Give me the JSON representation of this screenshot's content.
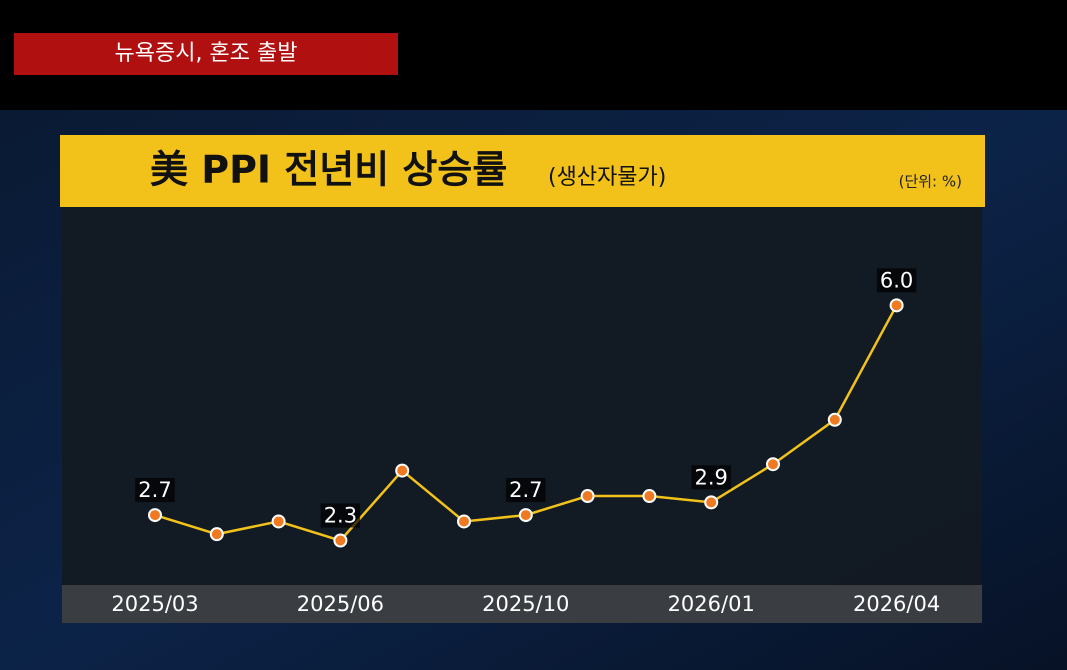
{
  "banner": "뉴욕증시, 혼조 출발",
  "chart_data": {
    "type": "line",
    "title": "美 PPI 전년비 상승률",
    "subtitle": "(생산자물가)",
    "unit": "(단위: %)",
    "categories": [
      "2025/03",
      null,
      null,
      "2025/06",
      null,
      null,
      "2025/10",
      null,
      null,
      "2026/01",
      null,
      null,
      "2026/04"
    ],
    "series": [
      {
        "color": "#f2c21b",
        "values": [
          2.7,
          2.4,
          2.6,
          2.3,
          3.4,
          2.6,
          2.7,
          3.0,
          3.0,
          2.9,
          3.5,
          4.2,
          6.0
        ],
        "value_labels": [
          "2.7",
          null,
          null,
          "2.3",
          null,
          null,
          "2.7",
          null,
          null,
          "2.9",
          null,
          null,
          "6.0"
        ]
      }
    ],
    "ylim": [
      1.6,
      7.5
    ]
  }
}
